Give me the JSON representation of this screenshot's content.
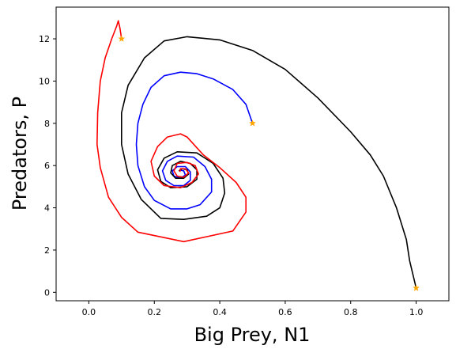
{
  "chart_data": {
    "type": "line",
    "title": "",
    "xlabel": "Big Prey, N1",
    "ylabel": "Predators, P",
    "xlim": [
      -0.1,
      1.1
    ],
    "ylim": [
      -0.4,
      13.5
    ],
    "x_ticks": [
      0.0,
      0.2,
      0.4,
      0.6,
      0.8,
      1.0
    ],
    "x_tick_labels": [
      "0.0",
      "0.2",
      "0.4",
      "0.6",
      "0.8",
      "1.0"
    ],
    "y_ticks": [
      0,
      2,
      4,
      6,
      8,
      10,
      12
    ],
    "y_tick_labels": [
      "0",
      "2",
      "4",
      "6",
      "8",
      "10",
      "12"
    ],
    "grid": false,
    "legend": "none",
    "marker_color": "#ffa500",
    "series": [
      {
        "color": "#0000ff",
        "start": [
          0.5,
          8.0
        ],
        "points": [
          [
            0.5,
            8.0
          ],
          [
            0.48,
            8.9
          ],
          [
            0.44,
            9.6
          ],
          [
            0.38,
            10.1
          ],
          [
            0.33,
            10.35
          ],
          [
            0.28,
            10.42
          ],
          [
            0.23,
            10.25
          ],
          [
            0.19,
            9.7
          ],
          [
            0.165,
            8.9
          ],
          [
            0.15,
            8.0
          ],
          [
            0.145,
            7.0
          ],
          [
            0.15,
            6.0
          ],
          [
            0.17,
            5.0
          ],
          [
            0.2,
            4.35
          ],
          [
            0.25,
            3.95
          ],
          [
            0.3,
            3.95
          ],
          [
            0.34,
            4.15
          ],
          [
            0.375,
            4.75
          ],
          [
            0.375,
            5.35
          ],
          [
            0.355,
            5.95
          ],
          [
            0.32,
            6.4
          ],
          [
            0.27,
            6.45
          ],
          [
            0.24,
            6.2
          ],
          [
            0.225,
            5.75
          ],
          [
            0.235,
            5.3
          ],
          [
            0.26,
            5.05
          ],
          [
            0.29,
            5.05
          ],
          [
            0.31,
            5.3
          ],
          [
            0.31,
            5.7
          ],
          [
            0.295,
            5.95
          ],
          [
            0.27,
            5.95
          ],
          [
            0.255,
            5.75
          ],
          [
            0.26,
            5.5
          ],
          [
            0.28,
            5.4
          ],
          [
            0.295,
            5.55
          ],
          [
            0.29,
            5.75
          ],
          [
            0.28,
            5.78
          ]
        ]
      },
      {
        "color": "#000000",
        "start": [
          1.0,
          0.2
        ],
        "points": [
          [
            1.0,
            0.2
          ],
          [
            0.98,
            1.5
          ],
          [
            0.97,
            2.5
          ],
          [
            0.94,
            4.0
          ],
          [
            0.9,
            5.5
          ],
          [
            0.86,
            6.5
          ],
          [
            0.8,
            7.6
          ],
          [
            0.7,
            9.2
          ],
          [
            0.6,
            10.55
          ],
          [
            0.5,
            11.45
          ],
          [
            0.4,
            11.95
          ],
          [
            0.3,
            12.1
          ],
          [
            0.23,
            11.9
          ],
          [
            0.17,
            11.1
          ],
          [
            0.12,
            9.8
          ],
          [
            0.1,
            8.5
          ],
          [
            0.1,
            7.0
          ],
          [
            0.12,
            5.6
          ],
          [
            0.16,
            4.4
          ],
          [
            0.22,
            3.5
          ],
          [
            0.29,
            3.45
          ],
          [
            0.36,
            3.6
          ],
          [
            0.4,
            4.0
          ],
          [
            0.415,
            4.7
          ],
          [
            0.41,
            5.4
          ],
          [
            0.38,
            6.1
          ],
          [
            0.33,
            6.6
          ],
          [
            0.27,
            6.65
          ],
          [
            0.23,
            6.35
          ],
          [
            0.21,
            5.8
          ],
          [
            0.22,
            5.25
          ],
          [
            0.25,
            4.95
          ],
          [
            0.3,
            5.0
          ],
          [
            0.33,
            5.35
          ],
          [
            0.33,
            5.8
          ],
          [
            0.31,
            6.1
          ],
          [
            0.28,
            6.2
          ],
          [
            0.255,
            6.0
          ],
          [
            0.25,
            5.65
          ],
          [
            0.265,
            5.4
          ],
          [
            0.29,
            5.4
          ],
          [
            0.305,
            5.6
          ],
          [
            0.3,
            5.8
          ],
          [
            0.285,
            5.85
          ],
          [
            0.275,
            5.75
          ]
        ]
      },
      {
        "color": "#ff0000",
        "start": [
          0.1,
          12.0
        ],
        "points": [
          [
            0.1,
            12.0
          ],
          [
            0.095,
            12.5
          ],
          [
            0.09,
            12.85
          ],
          [
            0.085,
            12.6
          ],
          [
            0.07,
            12.0
          ],
          [
            0.05,
            11.1
          ],
          [
            0.035,
            10.0
          ],
          [
            0.027,
            8.5
          ],
          [
            0.025,
            7.0
          ],
          [
            0.035,
            5.9
          ],
          [
            0.06,
            4.5
          ],
          [
            0.1,
            3.55
          ],
          [
            0.15,
            2.85
          ],
          [
            0.29,
            2.4
          ],
          [
            0.44,
            2.9
          ],
          [
            0.48,
            3.8
          ],
          [
            0.48,
            4.5
          ],
          [
            0.45,
            5.2
          ],
          [
            0.4,
            5.9
          ],
          [
            0.35,
            6.5
          ],
          [
            0.3,
            7.35
          ],
          [
            0.28,
            7.5
          ],
          [
            0.24,
            7.35
          ],
          [
            0.21,
            6.9
          ],
          [
            0.19,
            6.2
          ],
          [
            0.2,
            5.5
          ],
          [
            0.23,
            5.05
          ],
          [
            0.28,
            4.95
          ],
          [
            0.315,
            5.2
          ],
          [
            0.335,
            5.6
          ],
          [
            0.325,
            6.0
          ],
          [
            0.3,
            6.15
          ],
          [
            0.27,
            6.1
          ],
          [
            0.26,
            5.75
          ],
          [
            0.27,
            5.5
          ],
          [
            0.29,
            5.45
          ],
          [
            0.305,
            5.65
          ],
          [
            0.295,
            5.85
          ],
          [
            0.28,
            5.85
          ],
          [
            0.278,
            5.7
          ]
        ]
      }
    ]
  }
}
